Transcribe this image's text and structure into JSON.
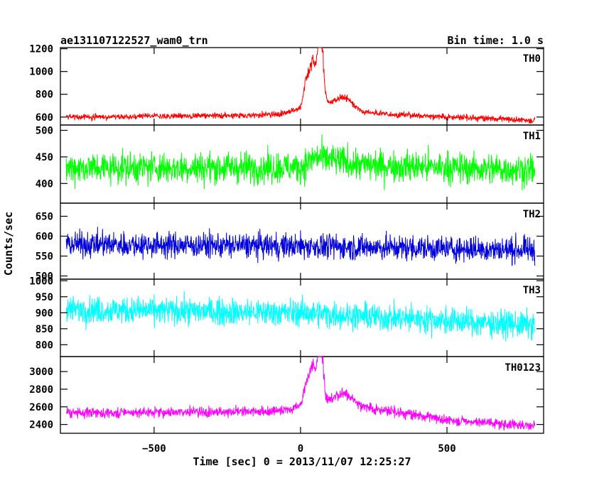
{
  "chart_data": {
    "type": "line",
    "title": "ae131107122527_wam0_trn",
    "subtitle": "Bin time: 1.0 s",
    "xlabel": "Time [sec] 0 = 2013/11/07 12:25:27",
    "ylabel": "Counts/sec",
    "xlim": [
      -820,
      830
    ],
    "x_ticks": [
      -500,
      0,
      500
    ],
    "x_tick_labels": [
      "−500",
      "0",
      "500"
    ],
    "x_data_range": [
      -800,
      800
    ],
    "bin_seconds": 1.0,
    "grid": false,
    "series": [
      {
        "name": "TH0",
        "color": "#ff0000",
        "ylim": [
          530,
          1210
        ],
        "y_ticks": [
          600,
          800,
          1000,
          1200
        ],
        "baseline_profile": [
          [
            -800,
            600
          ],
          [
            0,
            620
          ],
          [
            200,
            640
          ],
          [
            500,
            600
          ],
          [
            800,
            570
          ]
        ],
        "noise_amplitude": 25,
        "peaks": [
          [
            20,
            870
          ],
          [
            40,
            1000
          ],
          [
            60,
            900
          ],
          [
            70,
            1180
          ],
          [
            150,
            720
          ]
        ]
      },
      {
        "name": "TH1",
        "color": "#00ff00",
        "ylim": [
          363,
          510
        ],
        "y_ticks": [
          400,
          450,
          500
        ],
        "baseline_profile": [
          [
            -800,
            430
          ],
          [
            0,
            430
          ],
          [
            50,
            450
          ],
          [
            200,
            435
          ],
          [
            800,
            425
          ]
        ],
        "noise_amplitude": 28,
        "peaks": []
      },
      {
        "name": "TH2",
        "color": "#0000dd",
        "ylim": [
          492,
          683
        ],
        "y_ticks": [
          500,
          550,
          600,
          650
        ],
        "baseline_profile": [
          [
            -800,
            580
          ],
          [
            0,
            575
          ],
          [
            800,
            565
          ]
        ],
        "noise_amplitude": 30,
        "peaks": []
      },
      {
        "name": "TH3",
        "color": "#00ffff",
        "ylim": [
          763,
          1005
        ],
        "y_ticks": [
          800,
          850,
          900,
          950,
          1000
        ],
        "baseline_profile": [
          [
            -800,
            910
          ],
          [
            0,
            900
          ],
          [
            800,
            860
          ]
        ],
        "noise_amplitude": 40,
        "peaks": []
      },
      {
        "name": "TH0123",
        "color": "#ff00ff",
        "ylim": [
          2300,
          3170
        ],
        "y_ticks": [
          2400,
          2600,
          2800,
          3000
        ],
        "baseline_profile": [
          [
            -800,
            2530
          ],
          [
            0,
            2550
          ],
          [
            200,
            2600
          ],
          [
            500,
            2450
          ],
          [
            800,
            2380
          ]
        ],
        "noise_amplitude": 55,
        "peaks": [
          [
            20,
            2800
          ],
          [
            40,
            3000
          ],
          [
            60,
            2880
          ],
          [
            70,
            3150
          ],
          [
            150,
            2680
          ]
        ]
      }
    ]
  }
}
